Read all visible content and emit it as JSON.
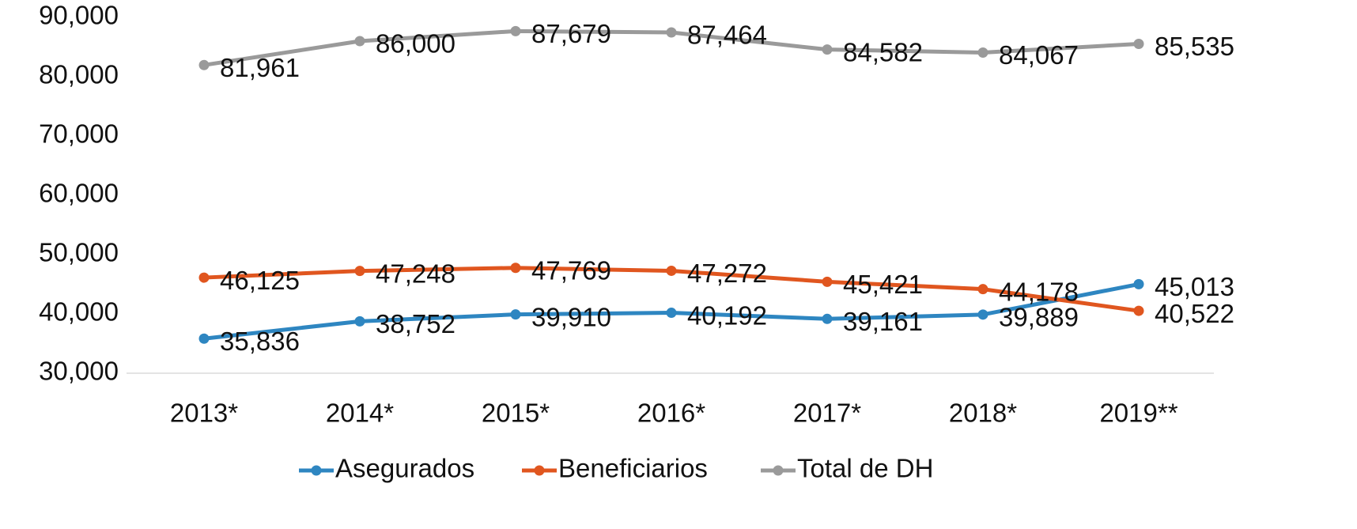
{
  "chart_data": {
    "type": "line",
    "categories": [
      "2013*",
      "2014*",
      "2015*",
      "2016*",
      "2017*",
      "2018*",
      "2019**"
    ],
    "series": [
      {
        "name": "Asegurados",
        "color": "#2e86c1",
        "values": [
          35836,
          38752,
          39910,
          40192,
          39161,
          39889,
          45013
        ],
        "value_labels": [
          "35,836",
          "38,752",
          "39,910",
          "40,192",
          "39,161",
          "39,889",
          "45,013"
        ]
      },
      {
        "name": "Beneficiarios",
        "color": "#e0561f",
        "values": [
          46125,
          47248,
          47769,
          47272,
          45421,
          44178,
          40522
        ],
        "value_labels": [
          "46,125",
          "47,248",
          "47,769",
          "47,272",
          "45,421",
          "44,178",
          "40,522"
        ]
      },
      {
        "name": "Total de DH",
        "color": "#9a9a9a",
        "values": [
          81961,
          86000,
          87679,
          87464,
          84582,
          84067,
          85535
        ],
        "value_labels": [
          "81,961",
          "86,000",
          "87,679",
          "87,464",
          "84,582",
          "84,067",
          "85,535"
        ]
      }
    ],
    "ylim": [
      30000,
      90000
    ],
    "yticks": [
      {
        "value": 30000,
        "label": "30,000"
      },
      {
        "value": 40000,
        "label": "40,000"
      },
      {
        "value": 50000,
        "label": "50,000"
      },
      {
        "value": 60000,
        "label": "60,000"
      },
      {
        "value": 70000,
        "label": "70,000"
      },
      {
        "value": 80000,
        "label": "80,000"
      },
      {
        "value": 90000,
        "label": "90,000"
      }
    ],
    "grid": false,
    "legend": "bottom"
  }
}
